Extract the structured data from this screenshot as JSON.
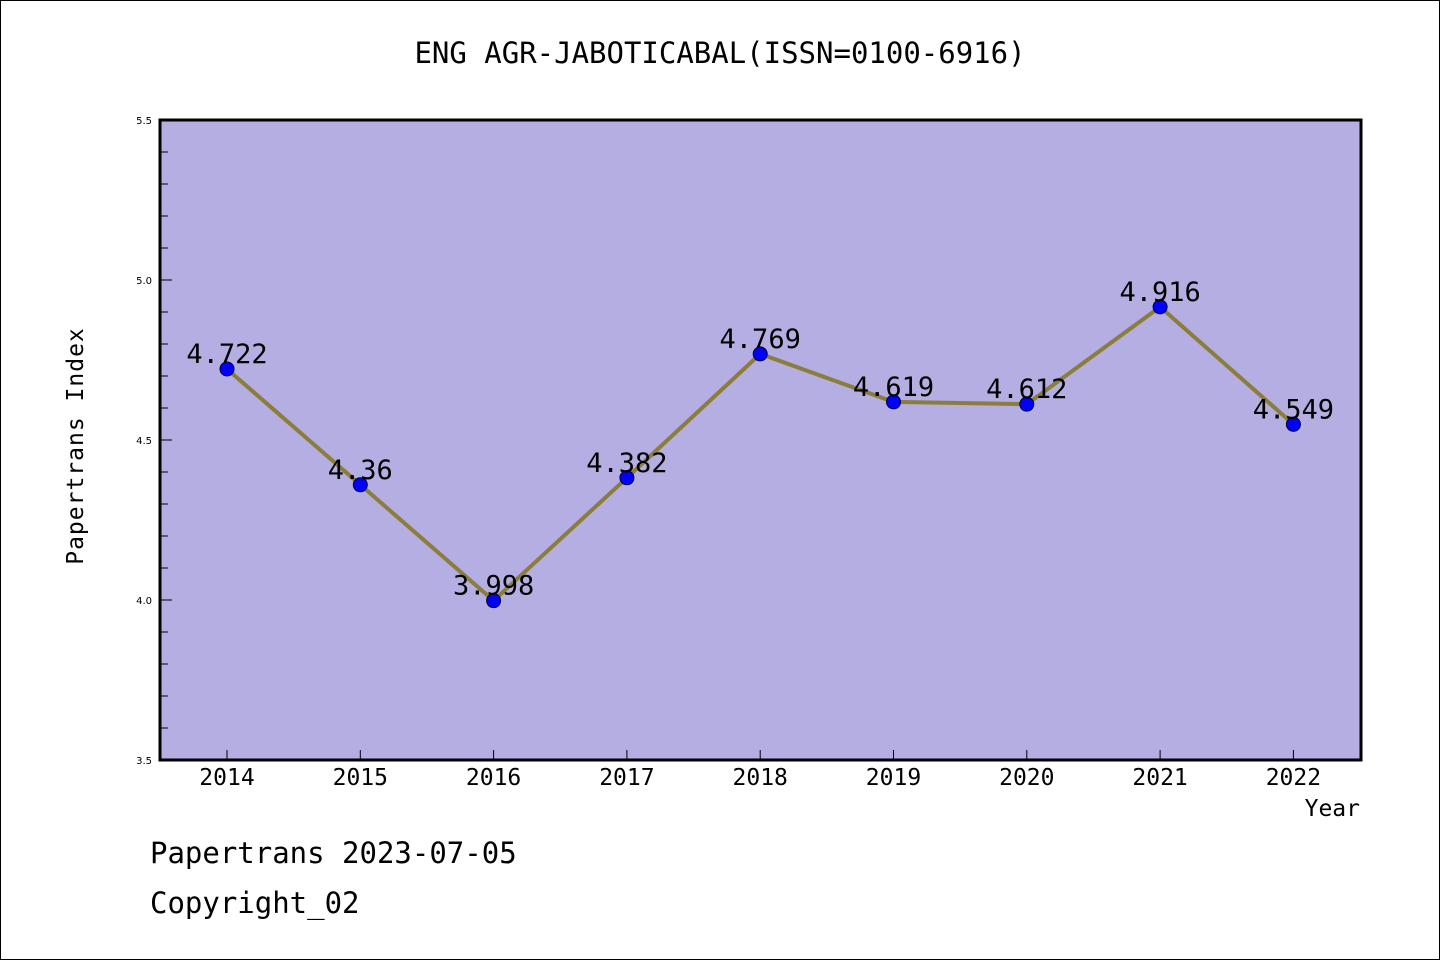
{
  "page": {
    "title": "ENG AGR-JABOTICABAL(ISSN=0100-6916)",
    "footer_line1": "Papertrans 2023-07-05",
    "footer_line2": "Copyright_02"
  },
  "colors": {
    "plot_background": "#b4aee2",
    "line": "#8b7d3a",
    "marker": "#0000ff"
  },
  "chart_data": {
    "type": "line",
    "title": "ENG AGR-JABOTICABAL(ISSN=0100-6916)",
    "xlabel": "Year",
    "ylabel": "Papertrans Index",
    "categories": [
      "2014",
      "2015",
      "2016",
      "2017",
      "2018",
      "2019",
      "2020",
      "2021",
      "2022"
    ],
    "values": [
      4.722,
      4.36,
      3.998,
      4.382,
      4.769,
      4.619,
      4.612,
      4.916,
      4.549
    ],
    "labels": [
      "4.722",
      "4.36",
      "3.998",
      "4.382",
      "4.769",
      "4.619",
      "4.612",
      "4.916",
      "4.549"
    ],
    "ylim": [
      3.5,
      5.5
    ],
    "yticks": [
      "3.5",
      "4.0",
      "4.5",
      "5.0",
      "5.5"
    ],
    "grid": false,
    "legend": "none"
  }
}
